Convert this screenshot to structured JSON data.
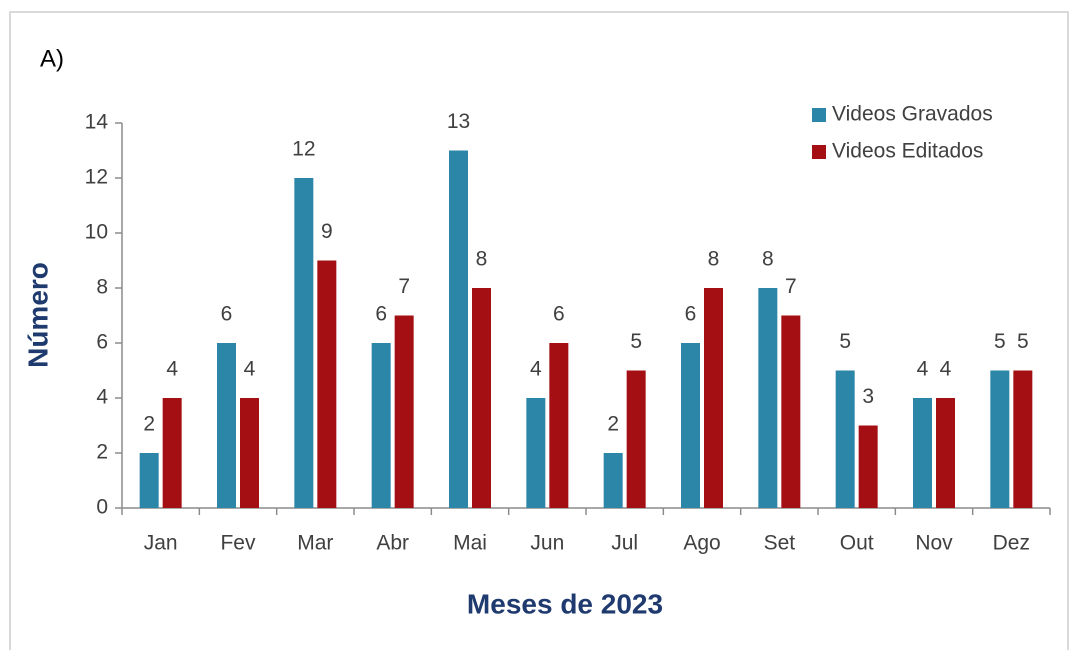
{
  "chart_data": {
    "type": "bar",
    "title": "A)",
    "x_label": "Meses de 2023",
    "y_label": "Número",
    "categories": [
      "Jan",
      "Fev",
      "Mar",
      "Abr",
      "Mai",
      "Jun",
      "Jul",
      "Ago",
      "Set",
      "Out",
      "Nov",
      "Dez"
    ],
    "series": [
      {
        "name": "Videos Gravados",
        "color": "#2b86a8",
        "values": [
          2,
          6,
          12,
          6,
          13,
          4,
          2,
          6,
          8,
          5,
          4,
          5
        ]
      },
      {
        "name": "Videos Editados",
        "color": "#a30f12",
        "values": [
          4,
          4,
          9,
          7,
          8,
          6,
          5,
          8,
          7,
          3,
          4,
          5
        ]
      }
    ],
    "ylim": [
      0,
      14
    ],
    "yticks": [
      0,
      2,
      4,
      6,
      8,
      10,
      12,
      14
    ],
    "legend": "upper right",
    "data_labels": true
  }
}
